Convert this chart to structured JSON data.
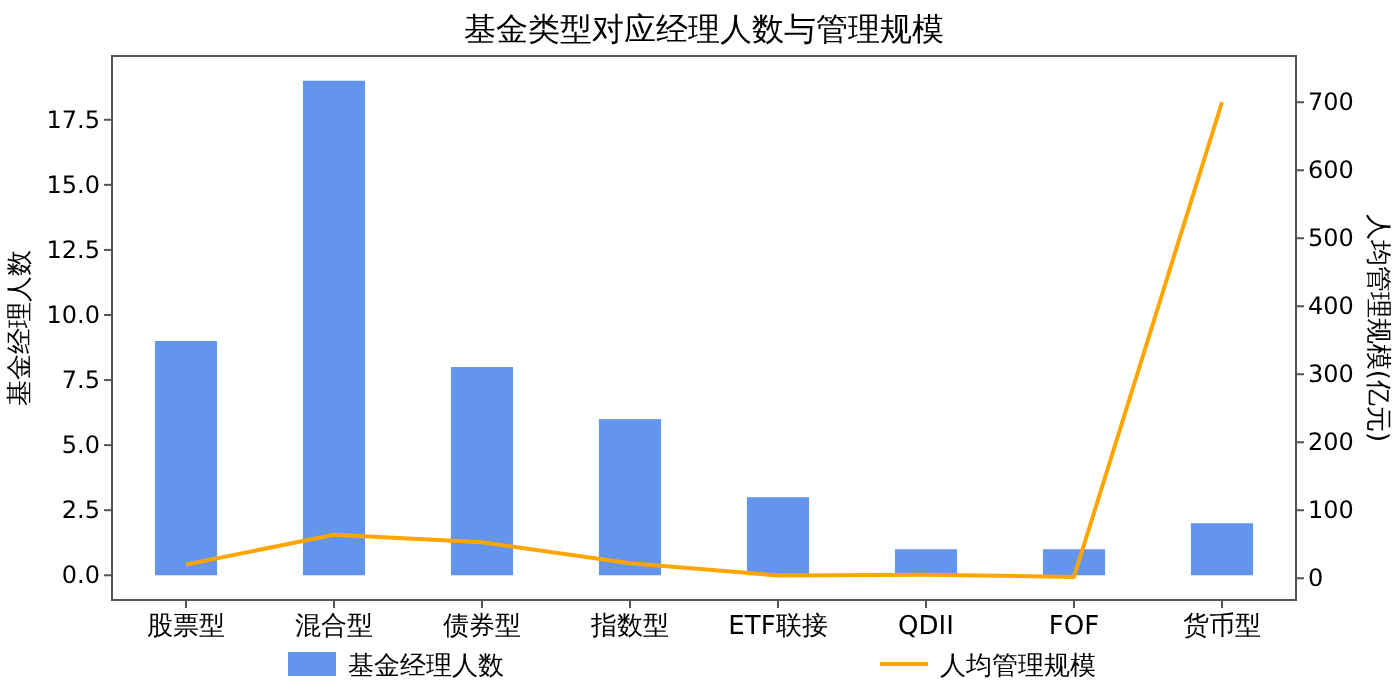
{
  "chart_data": {
    "type": "bar",
    "title": "基金类型对应经理人数与管理规模",
    "categories": [
      "股票型",
      "混合型",
      "债券型",
      "指数型",
      "ETF联接",
      "QDII",
      "FOF",
      "货币型"
    ],
    "ylabel": "基金经理人数",
    "y2label": "人均管理规模(亿元)",
    "series": [
      {
        "name": "基金经理人数",
        "color": "#6495ed",
        "values": [
          9,
          19,
          8,
          6,
          3,
          1,
          1,
          2
        ]
      },
      {
        "name": "人均管理规模",
        "type": "line",
        "axis": "y2",
        "color": "#ffa500",
        "values": [
          20,
          64,
          53,
          22,
          4,
          5,
          2,
          700
        ]
      }
    ],
    "ylim": [
      -0.95,
      19.95
    ],
    "yticks": [
      {
        "value": 0,
        "label": "0.0"
      },
      2.5,
      {
        "value": 5,
        "label": "5.0"
      },
      7.5,
      {
        "value": 10,
        "label": "10.0"
      },
      12.5,
      {
        "value": 15,
        "label": "15.0"
      },
      17.5
    ],
    "y2lim": [
      -32,
      768
    ],
    "y2ticks": [
      0,
      100,
      200,
      300,
      400,
      500,
      600,
      700
    ],
    "legend": "bottom",
    "grid": false,
    "marker": "none",
    "line_style": "solid"
  }
}
